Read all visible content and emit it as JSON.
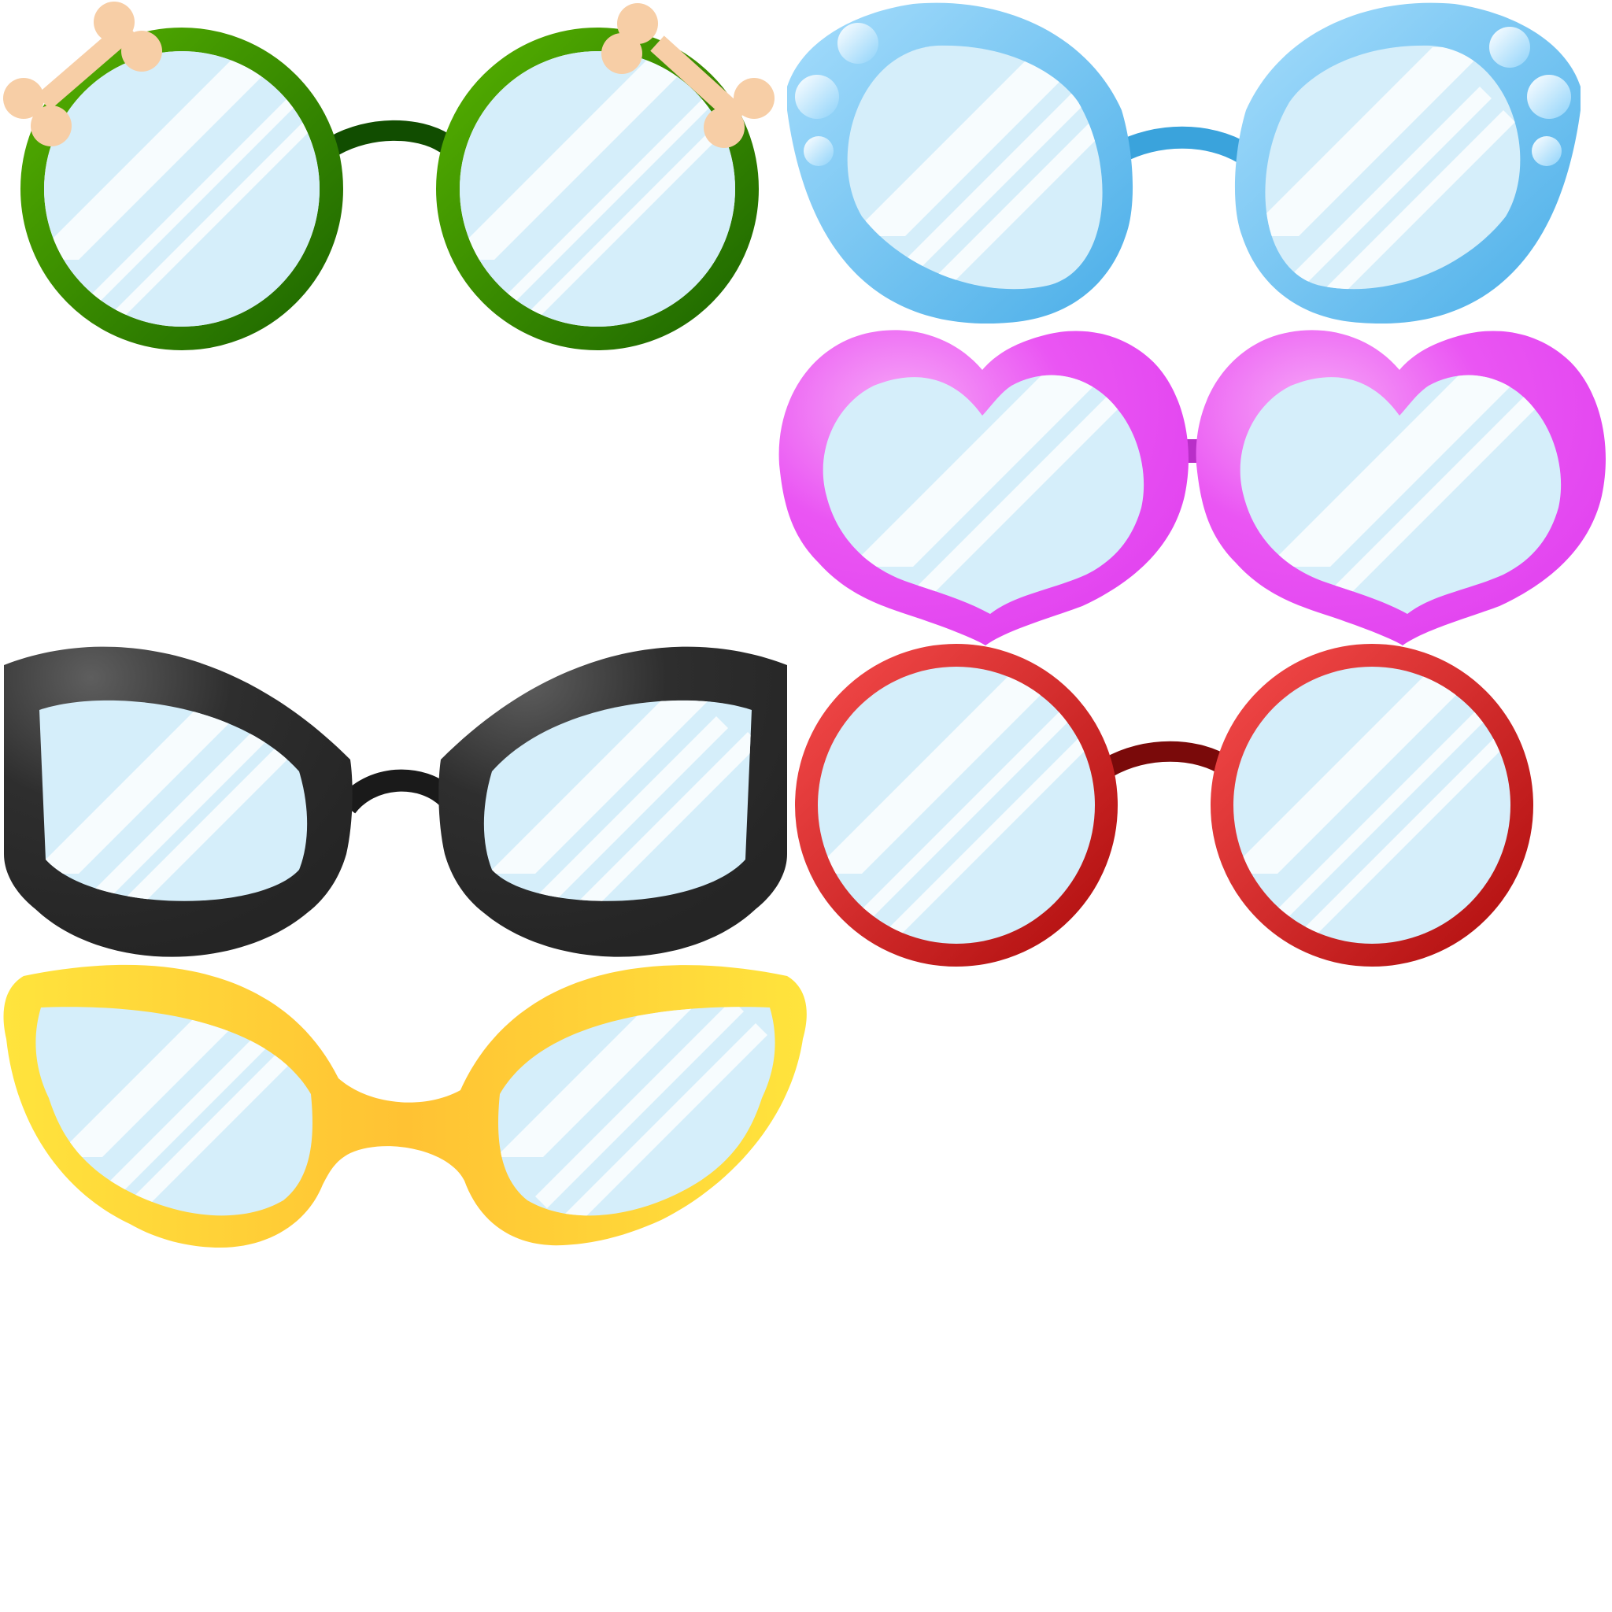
{
  "glasses": [
    {
      "id": "green-round",
      "frame_light": "#4aa800",
      "frame_dark": "#1e6b00",
      "bridge": "#0f4a00",
      "accent": "#f5cba1"
    },
    {
      "id": "blue-bubble",
      "frame_light": "#9ad8fb",
      "frame_dark": "#4fb4ea",
      "bridge": "#3aa3dc",
      "accent": "#c8eaff"
    },
    {
      "id": "pink-heart",
      "frame_light": "#f39cf5",
      "frame_dark": "#e447f2",
      "bridge": "#b92fc8"
    },
    {
      "id": "black-cateye",
      "frame_light": "#5a5a5a",
      "frame_dark": "#262626",
      "bridge": "#1a1a1a"
    },
    {
      "id": "red-round",
      "frame_light": "#f04848",
      "frame_dark": "#b81212",
      "bridge": "#7a0a0a"
    },
    {
      "id": "yellow-sport",
      "frame_light": "#ffe340",
      "frame_dark": "#ffc533",
      "bridge": "#ffc533"
    }
  ],
  "lens": {
    "fill": "#d5eefa",
    "glare": "#f7fcfe"
  }
}
